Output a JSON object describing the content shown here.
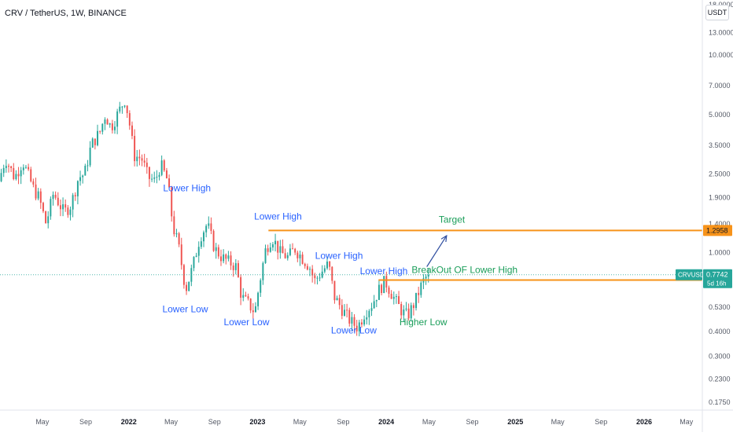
{
  "header": {
    "title": "CRV / TetherUS, 1W, BINANCE",
    "currency": "USDT"
  },
  "colors": {
    "up": "#26a69a",
    "down": "#ef5350",
    "level": "#f7931a",
    "label_blue": "#2962ff",
    "label_green": "#1b9e5a",
    "axis_text": "#555a66"
  },
  "chart_data": {
    "type": "candlestick",
    "symbol": "CRVUSDT",
    "interval": "1W",
    "exchange": "BINANCE",
    "y_scale": "log",
    "ylim": [
      0.16,
      19
    ],
    "y_ticks": [
      "18.0000",
      "13.0000",
      "10.0000",
      "7.0000",
      "5.0000",
      "3.5000",
      "2.5000",
      "1.9000",
      "1.4000",
      "1.0000",
      "0.5300",
      "0.4000",
      "0.3000",
      "0.2300",
      "0.1750"
    ],
    "y_tick_values": [
      18,
      13,
      10,
      7,
      5,
      3.5,
      2.5,
      1.9,
      1.4,
      1.0,
      0.53,
      0.4,
      0.3,
      0.23,
      0.175
    ],
    "x_ticks": [
      "May",
      "Sep",
      "2022",
      "May",
      "Sep",
      "2023",
      "May",
      "Sep",
      "2024",
      "May",
      "Sep",
      "2025",
      "May",
      "Sep",
      "2026",
      "May"
    ],
    "x_tick_values": [
      "2021-05-01",
      "2021-09-01",
      "2022-01-01",
      "2022-05-01",
      "2022-09-01",
      "2023-01-01",
      "2023-05-01",
      "2023-09-01",
      "2024-01-01",
      "2024-05-01",
      "2024-09-01",
      "2025-01-01",
      "2025-05-01",
      "2025-09-01",
      "2026-01-01",
      "2026-05-01"
    ],
    "x_range": [
      "2021-01-01",
      "2026-06-15"
    ],
    "price_path": [
      [
        "2021-01-01",
        2.3
      ],
      [
        "2021-01-20",
        3.0
      ],
      [
        "2021-02-15",
        2.4
      ],
      [
        "2021-03-10",
        2.9
      ],
      [
        "2021-04-10",
        2.1
      ],
      [
        "2021-04-25",
        1.9
      ],
      [
        "2021-05-15",
        1.4
      ],
      [
        "2021-06-05",
        2.0
      ],
      [
        "2021-07-05",
        1.6
      ],
      [
        "2021-07-25",
        1.75
      ],
      [
        "2021-08-15",
        2.4
      ],
      [
        "2021-09-01",
        2.5
      ],
      [
        "2021-09-20",
        3.5
      ],
      [
        "2021-10-15",
        4.1
      ],
      [
        "2021-10-30",
        5.0
      ],
      [
        "2021-11-15",
        4.3
      ],
      [
        "2021-12-10",
        5.3
      ],
      [
        "2021-12-25",
        6.0
      ],
      [
        "2022-01-05",
        4.7
      ],
      [
        "2022-01-20",
        3.1
      ],
      [
        "2022-02-10",
        3.0
      ],
      [
        "2022-03-01",
        2.4
      ],
      [
        "2022-03-20",
        2.3
      ],
      [
        "2022-04-05",
        2.8
      ],
      [
        "2022-04-25",
        2.3
      ],
      [
        "2022-05-10",
        1.35
      ],
      [
        "2022-05-25",
        1.1
      ],
      [
        "2022-06-15",
        0.65
      ],
      [
        "2022-07-05",
        0.85
      ],
      [
        "2022-07-25",
        1.2
      ],
      [
        "2022-08-15",
        1.4
      ],
      [
        "2022-09-05",
        1.05
      ],
      [
        "2022-09-25",
        0.95
      ],
      [
        "2022-10-15",
        0.9
      ],
      [
        "2022-11-05",
        0.85
      ],
      [
        "2022-11-20",
        0.6
      ],
      [
        "2022-12-10",
        0.55
      ],
      [
        "2022-12-28",
        0.5
      ],
      [
        "2023-01-10",
        0.7
      ],
      [
        "2023-01-28",
        1.05
      ],
      [
        "2023-02-15",
        1.2
      ],
      [
        "2023-03-10",
        1.0
      ],
      [
        "2023-04-01",
        0.95
      ],
      [
        "2023-04-20",
        1.05
      ],
      [
        "2023-05-10",
        0.95
      ],
      [
        "2023-06-01",
        0.85
      ],
      [
        "2023-06-15",
        0.72
      ],
      [
        "2023-07-05",
        0.8
      ],
      [
        "2023-07-25",
        0.88
      ],
      [
        "2023-08-10",
        0.6
      ],
      [
        "2023-09-01",
        0.52
      ],
      [
        "2023-09-25",
        0.45
      ],
      [
        "2023-10-15",
        0.42
      ],
      [
        "2023-11-05",
        0.5
      ],
      [
        "2023-11-25",
        0.55
      ],
      [
        "2023-12-15",
        0.65
      ],
      [
        "2024-01-01",
        0.72
      ],
      [
        "2024-01-20",
        0.62
      ],
      [
        "2024-02-05",
        0.55
      ],
      [
        "2024-02-20",
        0.5
      ],
      [
        "2024-03-05",
        0.48
      ],
      [
        "2024-03-25",
        0.56
      ],
      [
        "2024-04-15",
        0.7
      ],
      [
        "2024-05-01",
        0.7742
      ]
    ],
    "levels": [
      {
        "label": "1.2958",
        "value": 1.2958,
        "from": "2023-02-01"
      },
      {
        "label": "0.7275",
        "value": 0.7275,
        "from": "2023-12-10"
      }
    ],
    "last_price": {
      "symbol_label": "CRVUSDT",
      "value_label": "0.7742",
      "value": 0.7742,
      "countdown": "5d 16h"
    },
    "annotations": [
      {
        "text": "Lower High",
        "date": "2022-06-15",
        "price": 2.05,
        "color": "blue"
      },
      {
        "text": "Lower High",
        "date": "2023-02-28",
        "price": 1.47,
        "color": "blue"
      },
      {
        "text": "Lower High",
        "date": "2023-08-20",
        "price": 0.93,
        "color": "blue"
      },
      {
        "text": "Lower High",
        "date": "2023-12-25",
        "price": 0.78,
        "color": "blue"
      },
      {
        "text": "Lower Low",
        "date": "2022-06-10",
        "price": 0.5,
        "color": "blue"
      },
      {
        "text": "Lower Low",
        "date": "2022-12-01",
        "price": 0.43,
        "color": "blue"
      },
      {
        "text": "Lower Low",
        "date": "2023-10-01",
        "price": 0.39,
        "color": "blue"
      },
      {
        "text": "Higher Low",
        "date": "2024-04-15",
        "price": 0.43,
        "color": "green"
      },
      {
        "text": "Target",
        "date": "2024-07-05",
        "price": 1.42,
        "color": "green"
      },
      {
        "text": "BreakOut OF Lower High",
        "date": "2024-08-10",
        "price": 0.79,
        "color": "green"
      }
    ],
    "arrow": {
      "from": [
        "2024-04-25",
        0.85
      ],
      "to": [
        "2024-06-20",
        1.22
      ]
    }
  }
}
